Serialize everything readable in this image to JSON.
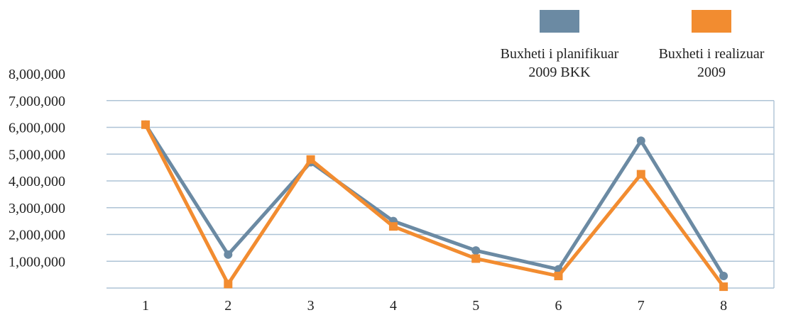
{
  "chart_data": {
    "type": "line",
    "categories": [
      "1",
      "2",
      "3",
      "4",
      "5",
      "6",
      "7",
      "8"
    ],
    "y_tick_labels": [
      "1,000,000",
      "2,000,000",
      "3,000,000",
      "4,000,000",
      "5,000,000",
      "6,000,000",
      "7,000,000",
      "8,000,000"
    ],
    "ylim": [
      0,
      8000000
    ],
    "grid": true,
    "legend_position": "top-right",
    "series": [
      {
        "name": "Buxheti i planifikuar 2009 BKK",
        "name_lines": [
          "Buxheti i planifikuar",
          "2009 BKK"
        ],
        "color": "#6b8aa3",
        "marker": "circle",
        "values": [
          6100000,
          1250000,
          4700000,
          2500000,
          1400000,
          700000,
          5500000,
          450000
        ]
      },
      {
        "name": "Buxheti i realizuar 2009",
        "name_lines": [
          "Buxheti i realizuar",
          "2009"
        ],
        "color": "#f28c30",
        "marker": "square",
        "values": [
          6100000,
          150000,
          4800000,
          2300000,
          1100000,
          450000,
          4250000,
          50000
        ]
      }
    ]
  }
}
